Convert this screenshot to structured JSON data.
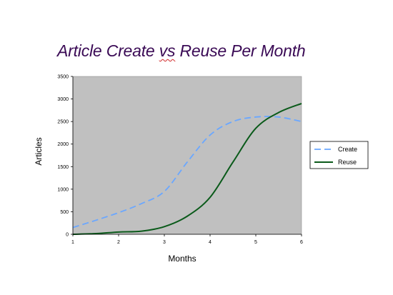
{
  "slide": {
    "title_part1": "Article Create ",
    "title_vs": "vs",
    "title_part2": " Reuse Per Month"
  },
  "chart_data": {
    "type": "line",
    "title": "Article Create vs Reuse Per Month",
    "xlabel": "Months",
    "ylabel": "Articles",
    "x_ticks": [
      "1",
      "2",
      "3",
      "4",
      "5",
      "6"
    ],
    "y_ticks": [
      "0",
      "500",
      "1000",
      "1500",
      "2000",
      "2500",
      "3000",
      "3500"
    ],
    "xlim": [
      1,
      6
    ],
    "ylim": [
      0,
      3500
    ],
    "grid": false,
    "plot_background": "#c0c0c0",
    "legend_position": "right",
    "series": [
      {
        "name": "Create",
        "color": "#6aa7ff",
        "style": "dashed",
        "x": [
          1,
          1.5,
          2,
          2.5,
          3,
          3.5,
          4,
          4.5,
          5,
          5.5,
          6
        ],
        "values": [
          150,
          310,
          480,
          680,
          950,
          1600,
          2200,
          2500,
          2600,
          2600,
          2500
        ]
      },
      {
        "name": "Reuse",
        "color": "#0a5a1a",
        "style": "solid",
        "x": [
          1,
          1.5,
          2,
          2.5,
          3,
          3.5,
          4,
          4.5,
          5,
          5.5,
          6
        ],
        "values": [
          0,
          15,
          50,
          70,
          170,
          400,
          820,
          1600,
          2350,
          2700,
          2900
        ]
      }
    ]
  }
}
